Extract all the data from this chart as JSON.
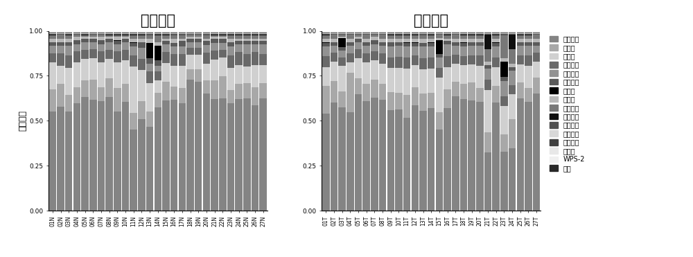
{
  "title_left": "正常组织",
  "title_right": "肿瘤组织",
  "ylabel": "相对丰度",
  "categories_N": [
    "01N",
    "02N",
    "03N",
    "04N",
    "05N",
    "06N",
    "07N",
    "08N",
    "09N",
    "10N",
    "11N",
    "12N",
    "13N",
    "14N",
    "15N",
    "16N",
    "17N",
    "18N",
    "19N",
    "20N",
    "21N",
    "22N",
    "23N",
    "24N",
    "25N",
    "26N",
    "27N"
  ],
  "categories_T": [
    "01T",
    "02T",
    "03T",
    "04T",
    "05T",
    "06T",
    "07T",
    "08T",
    "09T",
    "10T",
    "11T",
    "12T",
    "13T",
    "14T",
    "15T",
    "16T",
    "17T",
    "18T",
    "19T",
    "20T",
    "21T",
    "22T",
    "23T",
    "24T",
    "25T",
    "26T",
    "27T"
  ],
  "legend_labels": [
    "厚壁菌门",
    "变形菌",
    "拟杆菌",
    "放线菌群",
    "梭杆菌属",
    "弯曲杆菌",
    "螺旋体",
    "拟杆菌",
    "未命名菌",
    "酸杆菌属",
    "绿弯菌门",
    "蓝细菌门",
    "互养菌门",
    "疣菌群",
    "WPS-2",
    "其他"
  ],
  "colors": [
    "#848484",
    "#a8a8a8",
    "#d0d0d0",
    "#696969",
    "#929292",
    "#5a5a5a",
    "#000000",
    "#b8b8b8",
    "#787878",
    "#101010",
    "#505050",
    "#d8d8d8",
    "#404040",
    "#e8e8e8",
    "#f0f0f0",
    "#282828"
  ],
  "data_N": [
    [
      0.55,
      0.58,
      0.55,
      0.6,
      0.63,
      0.62,
      0.61,
      0.63,
      0.55,
      0.6,
      0.44,
      0.5,
      0.44,
      0.57,
      0.59,
      0.59,
      0.57,
      0.73,
      0.72,
      0.62,
      0.6,
      0.61,
      0.59,
      0.6,
      0.61,
      0.57,
      0.61
    ],
    [
      0.12,
      0.13,
      0.09,
      0.09,
      0.09,
      0.11,
      0.08,
      0.1,
      0.13,
      0.1,
      0.09,
      0.1,
      0.08,
      0.08,
      0.1,
      0.07,
      0.08,
      0.06,
      0.07,
      0.07,
      0.1,
      0.12,
      0.07,
      0.08,
      0.08,
      0.1,
      0.08
    ],
    [
      0.15,
      0.1,
      0.15,
      0.14,
      0.12,
      0.12,
      0.14,
      0.11,
      0.14,
      0.13,
      0.25,
      0.17,
      0.15,
      0.07,
      0.1,
      0.11,
      0.12,
      0.08,
      0.08,
      0.09,
      0.11,
      0.1,
      0.12,
      0.1,
      0.09,
      0.12,
      0.1
    ],
    [
      0.05,
      0.07,
      0.07,
      0.06,
      0.05,
      0.05,
      0.06,
      0.05,
      0.06,
      0.06,
      0.06,
      0.06,
      0.06,
      0.05,
      0.06,
      0.06,
      0.06,
      0.04,
      0.04,
      0.06,
      0.05,
      0.04,
      0.07,
      0.07,
      0.07,
      0.07,
      0.06
    ],
    [
      0.04,
      0.04,
      0.05,
      0.04,
      0.04,
      0.04,
      0.04,
      0.04,
      0.04,
      0.04,
      0.05,
      0.06,
      0.04,
      0.03,
      0.04,
      0.04,
      0.04,
      0.03,
      0.03,
      0.04,
      0.04,
      0.04,
      0.05,
      0.04,
      0.05,
      0.04,
      0.05
    ],
    [
      0.02,
      0.02,
      0.02,
      0.02,
      0.02,
      0.02,
      0.02,
      0.02,
      0.02,
      0.02,
      0.02,
      0.03,
      0.03,
      0.03,
      0.02,
      0.02,
      0.03,
      0.02,
      0.02,
      0.02,
      0.02,
      0.02,
      0.02,
      0.02,
      0.02,
      0.02,
      0.02
    ],
    [
      0.001,
      0.001,
      0.001,
      0.001,
      0.001,
      0.001,
      0.001,
      0.001,
      0.001,
      0.001,
      0.001,
      0.001,
      0.08,
      0.08,
      0.001,
      0.001,
      0.001,
      0.001,
      0.001,
      0.001,
      0.001,
      0.001,
      0.001,
      0.001,
      0.001,
      0.001,
      0.001
    ],
    [
      0.02,
      0.02,
      0.02,
      0.02,
      0.01,
      0.01,
      0.02,
      0.01,
      0.02,
      0.01,
      0.02,
      0.02,
      0.02,
      0.02,
      0.01,
      0.02,
      0.01,
      0.01,
      0.01,
      0.01,
      0.01,
      0.01,
      0.02,
      0.01,
      0.01,
      0.01,
      0.01
    ],
    [
      0.02,
      0.02,
      0.02,
      0.01,
      0.01,
      0.01,
      0.01,
      0.01,
      0.01,
      0.01,
      0.02,
      0.02,
      0.02,
      0.04,
      0.02,
      0.02,
      0.02,
      0.01,
      0.01,
      0.02,
      0.01,
      0.01,
      0.02,
      0.02,
      0.02,
      0.02,
      0.02
    ],
    [
      0.001,
      0.001,
      0.001,
      0.001,
      0.001,
      0.001,
      0.001,
      0.001,
      0.001,
      0.001,
      0.001,
      0.001,
      0.001,
      0.001,
      0.001,
      0.001,
      0.001,
      0.001,
      0.001,
      0.001,
      0.001,
      0.001,
      0.001,
      0.001,
      0.001,
      0.001,
      0.001
    ],
    [
      0.005,
      0.005,
      0.005,
      0.005,
      0.005,
      0.005,
      0.005,
      0.005,
      0.005,
      0.005,
      0.005,
      0.005,
      0.005,
      0.005,
      0.005,
      0.005,
      0.005,
      0.005,
      0.005,
      0.005,
      0.005,
      0.005,
      0.005,
      0.005,
      0.005,
      0.005,
      0.005
    ],
    [
      0.005,
      0.005,
      0.005,
      0.005,
      0.005,
      0.005,
      0.005,
      0.005,
      0.005,
      0.005,
      0.005,
      0.005,
      0.005,
      0.005,
      0.005,
      0.005,
      0.005,
      0.005,
      0.005,
      0.005,
      0.005,
      0.005,
      0.005,
      0.005,
      0.005,
      0.005,
      0.005
    ],
    [
      0.003,
      0.003,
      0.003,
      0.003,
      0.003,
      0.003,
      0.003,
      0.003,
      0.003,
      0.003,
      0.003,
      0.003,
      0.003,
      0.003,
      0.003,
      0.003,
      0.003,
      0.003,
      0.003,
      0.003,
      0.003,
      0.003,
      0.003,
      0.003,
      0.003,
      0.003,
      0.003
    ],
    [
      0.003,
      0.003,
      0.003,
      0.003,
      0.003,
      0.003,
      0.003,
      0.003,
      0.003,
      0.003,
      0.003,
      0.003,
      0.003,
      0.003,
      0.003,
      0.003,
      0.003,
      0.003,
      0.003,
      0.003,
      0.003,
      0.003,
      0.003,
      0.003,
      0.003,
      0.003,
      0.003
    ],
    [
      0.003,
      0.003,
      0.003,
      0.003,
      0.003,
      0.003,
      0.003,
      0.003,
      0.003,
      0.003,
      0.003,
      0.003,
      0.003,
      0.003,
      0.003,
      0.003,
      0.003,
      0.003,
      0.003,
      0.003,
      0.003,
      0.003,
      0.003,
      0.003,
      0.003,
      0.003,
      0.003
    ],
    [
      0.003,
      0.003,
      0.003,
      0.003,
      0.003,
      0.003,
      0.003,
      0.003,
      0.003,
      0.003,
      0.003,
      0.003,
      0.003,
      0.003,
      0.003,
      0.003,
      0.003,
      0.003,
      0.003,
      0.003,
      0.003,
      0.003,
      0.003,
      0.003,
      0.003,
      0.003,
      0.003
    ]
  ],
  "data_T": [
    [
      0.52,
      0.61,
      0.6,
      0.55,
      0.65,
      0.61,
      0.63,
      0.62,
      0.55,
      0.56,
      0.5,
      0.57,
      0.53,
      0.55,
      0.47,
      0.55,
      0.64,
      0.6,
      0.61,
      0.6,
      0.33,
      0.58,
      0.31,
      0.35,
      0.62,
      0.6,
      0.66
    ],
    [
      0.15,
      0.12,
      0.09,
      0.22,
      0.09,
      0.1,
      0.1,
      0.09,
      0.1,
      0.09,
      0.12,
      0.1,
      0.09,
      0.08,
      0.1,
      0.1,
      0.08,
      0.08,
      0.1,
      0.08,
      0.11,
      0.09,
      0.09,
      0.16,
      0.09,
      0.08,
      0.09
    ],
    [
      0.1,
      0.11,
      0.15,
      0.06,
      0.11,
      0.12,
      0.11,
      0.11,
      0.13,
      0.14,
      0.14,
      0.12,
      0.13,
      0.13,
      0.2,
      0.12,
      0.1,
      0.1,
      0.1,
      0.12,
      0.24,
      0.1,
      0.15,
      0.14,
      0.1,
      0.12,
      0.09
    ],
    [
      0.06,
      0.05,
      0.05,
      0.05,
      0.05,
      0.05,
      0.05,
      0.06,
      0.06,
      0.06,
      0.06,
      0.05,
      0.06,
      0.06,
      0.06,
      0.06,
      0.05,
      0.05,
      0.05,
      0.06,
      0.06,
      0.05,
      0.05,
      0.05,
      0.05,
      0.06,
      0.05
    ],
    [
      0.05,
      0.04,
      0.04,
      0.04,
      0.04,
      0.04,
      0.04,
      0.04,
      0.06,
      0.06,
      0.06,
      0.05,
      0.06,
      0.06,
      0.06,
      0.06,
      0.05,
      0.05,
      0.05,
      0.05,
      0.06,
      0.06,
      0.08,
      0.08,
      0.05,
      0.05,
      0.04
    ],
    [
      0.02,
      0.02,
      0.02,
      0.02,
      0.02,
      0.02,
      0.02,
      0.02,
      0.02,
      0.02,
      0.02,
      0.02,
      0.02,
      0.02,
      0.02,
      0.02,
      0.02,
      0.02,
      0.02,
      0.02,
      0.02,
      0.02,
      0.02,
      0.02,
      0.02,
      0.02,
      0.02
    ],
    [
      0.001,
      0.001,
      0.05,
      0.001,
      0.001,
      0.001,
      0.001,
      0.001,
      0.001,
      0.001,
      0.001,
      0.001,
      0.001,
      0.001,
      0.08,
      0.001,
      0.001,
      0.001,
      0.001,
      0.001,
      0.001,
      0.001,
      0.08,
      0.001,
      0.001,
      0.001,
      0.001
    ],
    [
      0.02,
      0.02,
      0.01,
      0.02,
      0.01,
      0.02,
      0.02,
      0.02,
      0.02,
      0.02,
      0.02,
      0.02,
      0.02,
      0.02,
      0.01,
      0.01,
      0.02,
      0.02,
      0.02,
      0.02,
      0.02,
      0.02,
      0.02,
      0.02,
      0.02,
      0.02,
      0.02
    ],
    [
      0.02,
      0.02,
      0.01,
      0.02,
      0.01,
      0.02,
      0.01,
      0.02,
      0.02,
      0.02,
      0.02,
      0.02,
      0.02,
      0.02,
      0.02,
      0.02,
      0.02,
      0.02,
      0.02,
      0.02,
      0.07,
      0.02,
      0.12,
      0.08,
      0.02,
      0.02,
      0.02
    ],
    [
      0.001,
      0.001,
      0.001,
      0.001,
      0.001,
      0.001,
      0.001,
      0.001,
      0.001,
      0.001,
      0.001,
      0.001,
      0.001,
      0.001,
      0.001,
      0.001,
      0.001,
      0.001,
      0.001,
      0.001,
      0.08,
      0.001,
      0.001,
      0.08,
      0.001,
      0.001,
      0.001
    ],
    [
      0.005,
      0.005,
      0.005,
      0.005,
      0.005,
      0.005,
      0.005,
      0.005,
      0.005,
      0.005,
      0.005,
      0.005,
      0.005,
      0.005,
      0.005,
      0.005,
      0.005,
      0.005,
      0.005,
      0.005,
      0.005,
      0.005,
      0.005,
      0.005,
      0.005,
      0.005,
      0.005
    ],
    [
      0.005,
      0.005,
      0.005,
      0.005,
      0.005,
      0.005,
      0.005,
      0.005,
      0.005,
      0.005,
      0.005,
      0.005,
      0.005,
      0.005,
      0.005,
      0.005,
      0.005,
      0.005,
      0.005,
      0.005,
      0.005,
      0.005,
      0.005,
      0.005,
      0.005,
      0.005,
      0.005
    ],
    [
      0.003,
      0.003,
      0.003,
      0.003,
      0.003,
      0.003,
      0.003,
      0.003,
      0.003,
      0.003,
      0.003,
      0.003,
      0.003,
      0.003,
      0.003,
      0.003,
      0.003,
      0.003,
      0.003,
      0.003,
      0.003,
      0.003,
      0.003,
      0.003,
      0.003,
      0.003,
      0.003
    ],
    [
      0.003,
      0.003,
      0.003,
      0.003,
      0.003,
      0.003,
      0.003,
      0.003,
      0.003,
      0.003,
      0.003,
      0.003,
      0.003,
      0.003,
      0.003,
      0.003,
      0.003,
      0.003,
      0.003,
      0.003,
      0.003,
      0.003,
      0.003,
      0.003,
      0.003,
      0.003,
      0.003
    ],
    [
      0.003,
      0.003,
      0.003,
      0.003,
      0.003,
      0.003,
      0.003,
      0.003,
      0.003,
      0.003,
      0.003,
      0.003,
      0.003,
      0.003,
      0.003,
      0.003,
      0.003,
      0.003,
      0.003,
      0.003,
      0.003,
      0.003,
      0.003,
      0.003,
      0.003,
      0.003,
      0.003
    ],
    [
      0.003,
      0.003,
      0.003,
      0.003,
      0.003,
      0.003,
      0.003,
      0.003,
      0.003,
      0.003,
      0.003,
      0.003,
      0.003,
      0.003,
      0.003,
      0.003,
      0.003,
      0.003,
      0.003,
      0.003,
      0.003,
      0.003,
      0.003,
      0.003,
      0.003,
      0.003,
      0.003
    ]
  ],
  "title_fontsize": 15,
  "tick_fontsize": 5.5,
  "ylabel_fontsize": 9,
  "legend_fontsize": 7,
  "background_color": "#ffffff"
}
